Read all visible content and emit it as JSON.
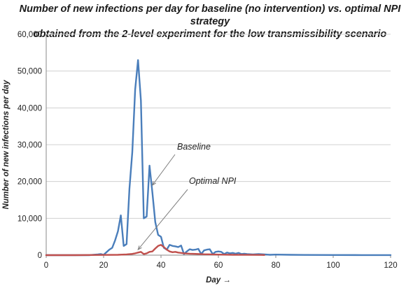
{
  "chart_data": {
    "type": "line",
    "title_line1": "Number of new infections per day for baseline (no intervention) vs. optimal NPI strategy",
    "title_line2": "obtained from the 2-level experiment for the low transmissibility scenario",
    "xlabel": "Day →",
    "ylabel": "Number of new infections per day",
    "xlim": [
      0,
      120
    ],
    "ylim": [
      0,
      60000
    ],
    "x_ticks": [
      0,
      20,
      40,
      60,
      80,
      100,
      120
    ],
    "y_ticks": [
      0,
      10000,
      20000,
      30000,
      40000,
      50000,
      60000
    ],
    "y_tick_labels": [
      "0",
      "10,000",
      "20,000",
      "30,000",
      "40,000",
      "50,000",
      "60,000"
    ],
    "grid": "horizontal",
    "legend": "none",
    "annotations": [
      {
        "text": "Baseline",
        "points_to": {
          "x": 37,
          "y": 19000
        }
      },
      {
        "text": "Optimal NPI",
        "points_to": {
          "x": 32,
          "y": 1500
        }
      }
    ],
    "series": [
      {
        "color": "#4a7ebb",
        "x": [
          0,
          5,
          10,
          15,
          18,
          19,
          20,
          21,
          22,
          23,
          24,
          25,
          26,
          27,
          28,
          29,
          30,
          31,
          32,
          33,
          34,
          35,
          36,
          37,
          38,
          39,
          40,
          41,
          42,
          43,
          44,
          45,
          46,
          47,
          48,
          49,
          50,
          51,
          52,
          53,
          54,
          55,
          56,
          57,
          58,
          59,
          60,
          61,
          62,
          63,
          64,
          65,
          66,
          67,
          68,
          69,
          70,
          72,
          74,
          76,
          78,
          80,
          85,
          90,
          100,
          110,
          120
        ],
        "values": [
          0,
          0,
          0,
          0,
          200,
          300,
          100,
          800,
          1500,
          2000,
          4000,
          6500,
          10800,
          2500,
          3000,
          18000,
          28000,
          45000,
          53000,
          42000,
          10000,
          10500,
          24300,
          17000,
          9000,
          5500,
          5000,
          2000,
          1500,
          2800,
          2500,
          2400,
          2200,
          2600,
          300,
          1000,
          1600,
          1400,
          1500,
          1700,
          300,
          1300,
          1500,
          1600,
          300,
          900,
          1000,
          900,
          300,
          700,
          500,
          600,
          400,
          600,
          300,
          400,
          300,
          200,
          300,
          200,
          100,
          150,
          100,
          50,
          30,
          20,
          10
        ]
      },
      {
        "color": "#c0504d",
        "x": [
          0,
          10,
          20,
          25,
          28,
          30,
          31,
          32,
          33,
          34,
          35,
          36,
          37,
          38,
          39,
          40,
          41,
          42,
          43,
          44,
          45,
          46,
          47,
          48,
          50,
          52,
          55,
          58,
          60,
          65,
          70,
          75,
          76
        ],
        "values": [
          0,
          0,
          50,
          100,
          200,
          350,
          500,
          700,
          900,
          300,
          500,
          900,
          1000,
          1800,
          2500,
          2800,
          2200,
          1500,
          1000,
          800,
          900,
          700,
          600,
          500,
          400,
          350,
          250,
          200,
          150,
          100,
          80,
          50,
          30
        ]
      }
    ]
  }
}
